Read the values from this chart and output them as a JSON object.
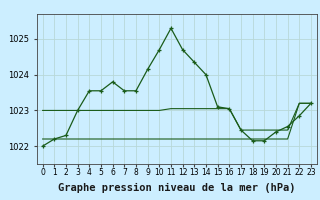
{
  "title": "Graphe pression niveau de la mer (hPa)",
  "background_color": "#cceeff",
  "grid_color": "#b8d8d8",
  "line_color": "#1a5c1a",
  "x_values": [
    0,
    1,
    2,
    3,
    4,
    5,
    6,
    7,
    8,
    9,
    10,
    11,
    12,
    13,
    14,
    15,
    16,
    17,
    18,
    19,
    20,
    21,
    22,
    23
  ],
  "y_main": [
    1022.0,
    1022.2,
    1022.3,
    1023.0,
    1023.55,
    1023.55,
    1023.8,
    1023.55,
    1023.55,
    1024.15,
    1024.7,
    1025.3,
    1024.7,
    1024.35,
    1024.0,
    1023.1,
    1023.05,
    1022.45,
    1022.15,
    1022.15,
    1022.4,
    1022.55,
    1022.85,
    1023.2
  ],
  "y_flat1": [
    1022.2,
    1022.2,
    1022.2,
    1022.2,
    1022.2,
    1022.2,
    1022.2,
    1022.2,
    1022.2,
    1022.2,
    1022.2,
    1022.2,
    1022.2,
    1022.2,
    1022.2,
    1022.2,
    1022.2,
    1022.2,
    1022.2,
    1022.2,
    1022.2,
    1022.2,
    1023.2,
    1023.2
  ],
  "y_flat2": [
    1023.0,
    1023.0,
    1023.0,
    1023.0,
    1023.0,
    1023.0,
    1023.0,
    1023.0,
    1023.0,
    1023.0,
    1023.0,
    1023.05,
    1023.05,
    1023.05,
    1023.05,
    1023.05,
    1023.05,
    1022.45,
    1022.45,
    1022.45,
    1022.45,
    1022.45,
    1023.2,
    1023.2
  ],
  "ylim": [
    1021.5,
    1025.7
  ],
  "xlim": [
    -0.5,
    23.5
  ],
  "yticks": [
    1022,
    1023,
    1024,
    1025
  ],
  "title_fontsize": 7.5,
  "tick_fontsize": 6
}
